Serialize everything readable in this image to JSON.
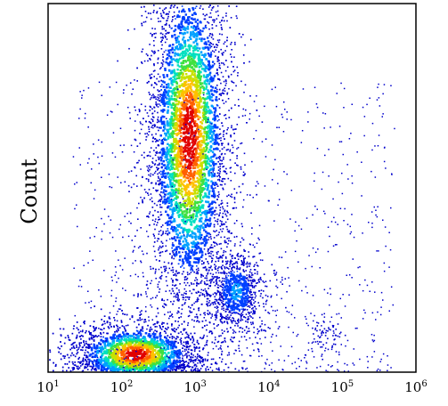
{
  "chart_data": {
    "type": "scatter",
    "subtype": "density-scatter (flow cytometry)",
    "title": "",
    "xlabel": "",
    "ylabel": "Count",
    "x_scale": "log",
    "xlim": [
      10,
      1000000
    ],
    "ylim": [
      0,
      1
    ],
    "grid": false,
    "legend": "none",
    "x_ticks": [
      {
        "base": "10",
        "exp": "1",
        "value": 10
      },
      {
        "base": "10",
        "exp": "2",
        "value": 100
      },
      {
        "base": "10",
        "exp": "3",
        "value": 1000
      },
      {
        "base": "10",
        "exp": "4",
        "value": 10000
      },
      {
        "base": "10",
        "exp": "5",
        "value": 100000
      },
      {
        "base": "10",
        "exp": "6",
        "value": 1000000
      }
    ],
    "colormap": [
      "#0000cc",
      "#0040ff",
      "#00a0ff",
      "#00e0c0",
      "#40e040",
      "#c8e000",
      "#ffc000",
      "#ff6000",
      "#e00000"
    ],
    "populations": [
      {
        "x_center": 800,
        "y_center": 0.64,
        "x_spread_decades": 0.22,
        "y_spread": 0.2,
        "density": 1.0
      },
      {
        "x_center": 150,
        "y_center": 0.05,
        "x_spread_decades": 0.35,
        "y_spread": 0.035,
        "density": 1.0
      },
      {
        "x_center": 3500,
        "y_center": 0.22,
        "x_spread_decades": 0.16,
        "y_spread": 0.05,
        "density": 0.35
      },
      {
        "x_center": 60000,
        "y_center": 0.1,
        "x_spread_decades": 0.08,
        "y_spread": 0.02,
        "density": 0.12
      }
    ]
  }
}
